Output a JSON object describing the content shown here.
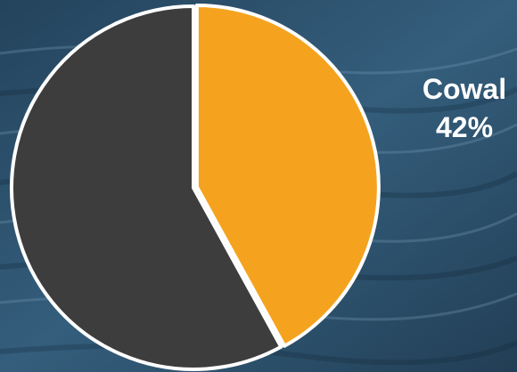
{
  "chart_data": {
    "type": "pie",
    "slices": [
      {
        "name": "Cowal",
        "value": 42,
        "color": "#f5a31f",
        "label": "Cowal",
        "value_label": "42%"
      },
      {
        "name": "",
        "value": 58,
        "color": "#3d3d3d",
        "label": "",
        "value_label": ""
      }
    ],
    "legend": "none"
  },
  "colors": {
    "background": "#2f5470",
    "slice_edge": "#ffffff",
    "label_text": "#ffffff"
  }
}
